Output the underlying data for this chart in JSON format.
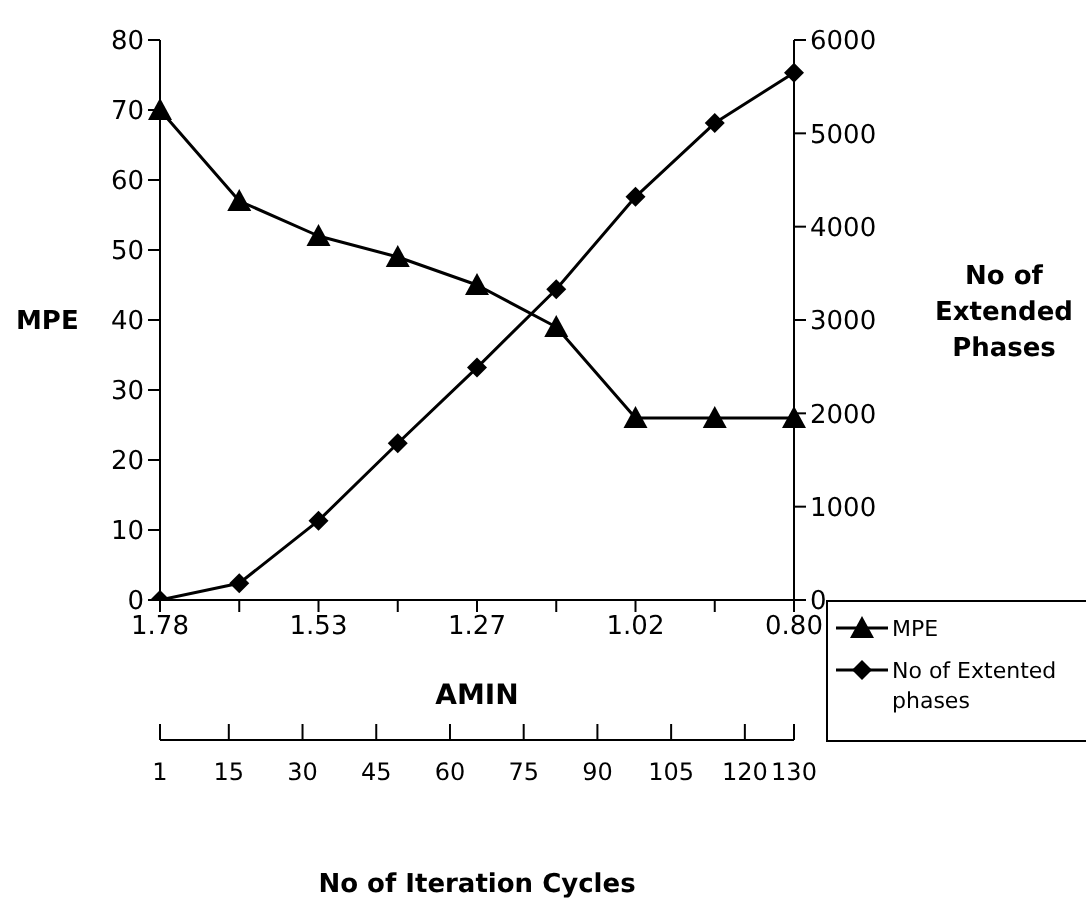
{
  "chart_data": {
    "type": "line",
    "xlabel": "AMIN",
    "ylabel": "MPE",
    "y2label": "No of Extended Phases",
    "x2label": "No of Iteration Cycles",
    "categories": [
      "1.78",
      null,
      "1.53",
      null,
      "1.27",
      null,
      "1.02",
      null,
      "0.80"
    ],
    "series": [
      {
        "name": "MPE",
        "color": "#000000",
        "marker": "triangle",
        "values": [
          70,
          57,
          52,
          49,
          45,
          39,
          26,
          26,
          26
        ]
      },
      {
        "name": "No of Extented phases",
        "color": "#000000",
        "marker": "diamond",
        "axis": "y2",
        "values": [
          0,
          180,
          850,
          1680,
          2490,
          3330,
          4320,
          5110,
          5650
        ]
      }
    ],
    "ylim": [
      0,
      80
    ],
    "yticks": [
      0,
      10,
      20,
      30,
      40,
      50,
      60,
      70,
      80
    ],
    "y2lim": [
      0,
      6000
    ],
    "y2ticks": [
      0,
      1000,
      2000,
      3000,
      4000,
      5000,
      6000
    ],
    "x2lim": [
      1,
      130
    ],
    "x2ticks": [
      1,
      15,
      30,
      45,
      60,
      75,
      90,
      105,
      120,
      130
    ],
    "grid": false,
    "legend": "bottom right",
    "line_style": "solid"
  }
}
